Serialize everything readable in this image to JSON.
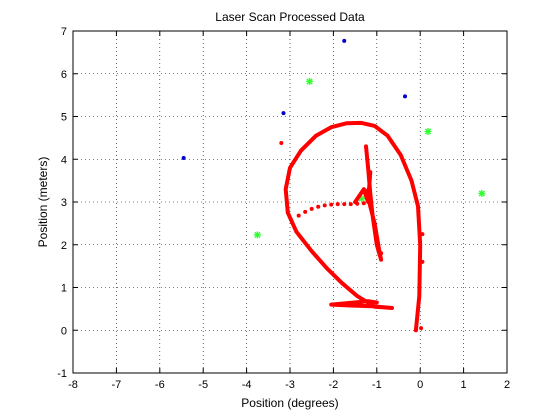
{
  "chart_data": {
    "type": "scatter",
    "title": "Laser Scan Processed Data",
    "xlabel": "Position (degrees)",
    "ylabel": "Position (meters)",
    "xlim": [
      -8,
      2
    ],
    "ylim": [
      -1,
      7
    ],
    "xticks": [
      "-8",
      "-7",
      "-6",
      "-5",
      "-4",
      "-3",
      "-2",
      "-1",
      "0",
      "1",
      "2"
    ],
    "yticks": [
      "-1",
      "0",
      "1",
      "2",
      "3",
      "4",
      "5",
      "6",
      "7"
    ],
    "grid": true,
    "series": [
      {
        "marker": "star",
        "color": "#33ff33",
        "points": [
          [
            -2.55,
            5.82
          ],
          [
            0.18,
            4.65
          ],
          [
            1.42,
            3.2
          ],
          [
            -1.35,
            3.08
          ],
          [
            -3.75,
            2.23
          ]
        ]
      },
      {
        "marker": "dot",
        "color": "#0000cc",
        "points": [
          [
            -1.75,
            6.77
          ],
          [
            -0.35,
            5.47
          ],
          [
            -3.15,
            5.08
          ],
          [
            -5.45,
            4.03
          ]
        ]
      },
      {
        "marker": "dot",
        "color": "#ff0000",
        "points": [
          [
            -3.2,
            4.38
          ],
          [
            -2.8,
            2.68
          ],
          [
            -2.65,
            2.77
          ],
          [
            -2.5,
            2.84
          ],
          [
            -2.35,
            2.89
          ],
          [
            -2.2,
            2.92
          ],
          [
            -2.05,
            2.94
          ],
          [
            -1.9,
            2.95
          ],
          [
            -1.75,
            2.95
          ],
          [
            -1.6,
            2.95
          ],
          [
            -1.45,
            2.96
          ],
          [
            -1.3,
            2.97
          ],
          [
            -1.2,
            3.1
          ],
          [
            -1.2,
            3.28
          ],
          [
            -0.95,
            1.85
          ],
          [
            -0.9,
            1.8
          ],
          [
            0.05,
            1.6
          ],
          [
            0.05,
            2.25
          ],
          [
            0.02,
            0.05
          ]
        ]
      },
      {
        "marker": "line",
        "color": "#ff0000",
        "points": [
          [
            -1.25,
            4.3
          ],
          [
            -1.2,
            3.8
          ],
          [
            -1.15,
            3.2
          ],
          [
            -1.1,
            2.7
          ],
          [
            -1.0,
            2.0
          ],
          [
            -0.9,
            1.65
          ],
          [
            -0.95,
            1.9
          ],
          [
            -1.05,
            2.5
          ],
          [
            -1.2,
            3.1
          ],
          [
            -1.3,
            3.3
          ],
          [
            -1.5,
            3.0
          ],
          [
            -1.3,
            3.3
          ],
          [
            -1.2,
            3.0
          ],
          [
            -1.15,
            3.7
          ]
        ]
      },
      {
        "marker": "line",
        "color": "#ff0000",
        "points": [
          [
            -0.1,
            0.0
          ],
          [
            -0.02,
            0.8
          ],
          [
            0.0,
            2.0
          ],
          [
            -0.05,
            2.9
          ],
          [
            -0.2,
            3.5
          ],
          [
            -0.45,
            4.1
          ],
          [
            -0.75,
            4.55
          ],
          [
            -1.05,
            4.78
          ],
          [
            -1.35,
            4.85
          ],
          [
            -1.7,
            4.84
          ],
          [
            -2.05,
            4.75
          ],
          [
            -2.4,
            4.55
          ],
          [
            -2.75,
            4.2
          ],
          [
            -3.0,
            3.8
          ],
          [
            -3.1,
            3.3
          ],
          [
            -3.05,
            2.75
          ],
          [
            -2.85,
            2.3
          ],
          [
            -2.5,
            1.85
          ],
          [
            -2.15,
            1.45
          ],
          [
            -1.8,
            1.1
          ],
          [
            -1.45,
            0.8
          ],
          [
            -1.05,
            0.55
          ],
          [
            -0.65,
            0.52
          ],
          [
            -1.1,
            0.56
          ],
          [
            -1.6,
            0.58
          ],
          [
            -2.05,
            0.6
          ],
          [
            -1.2,
            0.68
          ],
          [
            -1.0,
            0.65
          ]
        ]
      }
    ]
  }
}
